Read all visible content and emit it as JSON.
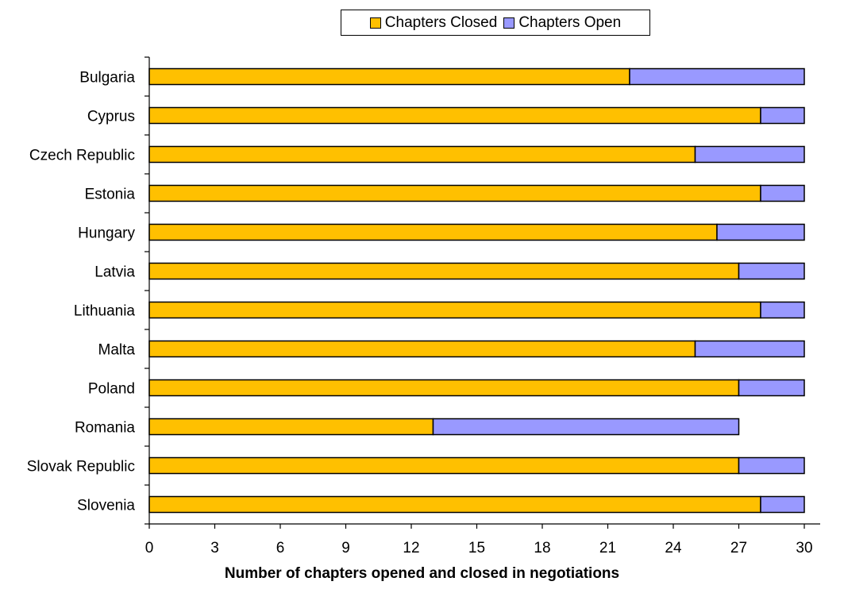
{
  "chart_data": {
    "type": "bar",
    "orientation": "horizontal",
    "stacked": true,
    "title": "",
    "xlabel": "Number of chapters opened and closed in negotiations",
    "ylabel": "",
    "xlim": [
      0,
      30
    ],
    "xticks": [
      0,
      3,
      6,
      9,
      12,
      15,
      18,
      21,
      24,
      27,
      30
    ],
    "grid": false,
    "legend_position": "top",
    "categories": [
      "Bulgaria",
      "Cyprus",
      "Czech Republic",
      "Estonia",
      "Hungary",
      "Latvia",
      "Lithuania",
      "Malta",
      "Poland",
      "Romania",
      "Slovak Republic",
      "Slovenia"
    ],
    "series": [
      {
        "name": "Chapters Closed",
        "color": "#FFC000",
        "values": [
          22,
          28,
          25,
          28,
          26,
          27,
          28,
          25,
          27,
          13,
          27,
          28
        ]
      },
      {
        "name": "Chapters Open",
        "color": "#9999FF",
        "values": [
          8,
          2,
          5,
          2,
          4,
          3,
          2,
          5,
          3,
          14,
          3,
          2
        ]
      }
    ]
  }
}
